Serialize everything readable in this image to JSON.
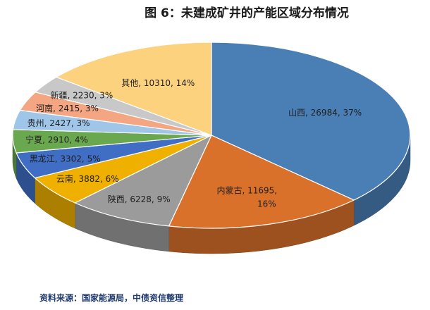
{
  "title": "图 6：未建成矿井的产能区域分布情况",
  "source": "资料来源：国家能源局，中债资信整理",
  "chart_data": {
    "type": "pie",
    "style": "3d",
    "title": "图 6：未建成矿井的产能区域分布情况",
    "slices": [
      {
        "label": "山西",
        "value": 26984,
        "percent": "37%",
        "color": "#4a7fb5",
        "text": "山西, 26984, 37%"
      },
      {
        "label": "内蒙古",
        "value": 11695,
        "percent": "16%",
        "color": "#d9712b",
        "text": "内蒙古, 11695,",
        "text2": "16%"
      },
      {
        "label": "陕西",
        "value": 6228,
        "percent": "9%",
        "color": "#9b9b9b",
        "text": "陕西, 6228, 9%"
      },
      {
        "label": "云南",
        "value": 3882,
        "percent": "6%",
        "color": "#f0b000",
        "text": "云南, 3882, 6%"
      },
      {
        "label": "黑龙江",
        "value": 3302,
        "percent": "5%",
        "color": "#3f6ec4",
        "text": "黑龙江, 3302, 5%"
      },
      {
        "label": "宁夏",
        "value": 2910,
        "percent": "4%",
        "color": "#6aa84f",
        "text": "宁夏, 2910, 4%"
      },
      {
        "label": "贵州",
        "value": 2427,
        "percent": "3%",
        "color": "#9fc5e8",
        "text": "贵州, 2427, 3%"
      },
      {
        "label": "河南",
        "value": 2415,
        "percent": "3%",
        "color": "#f4a582",
        "text": "河南, 2415, 3%"
      },
      {
        "label": "新疆",
        "value": 2230,
        "percent": "3%",
        "color": "#c8c8c8",
        "text": "新疆, 2230, 3%"
      },
      {
        "label": "其他",
        "value": 10310,
        "percent": "14%",
        "color": "#fcd27f",
        "text": "其他, 10310, 14%"
      }
    ]
  }
}
